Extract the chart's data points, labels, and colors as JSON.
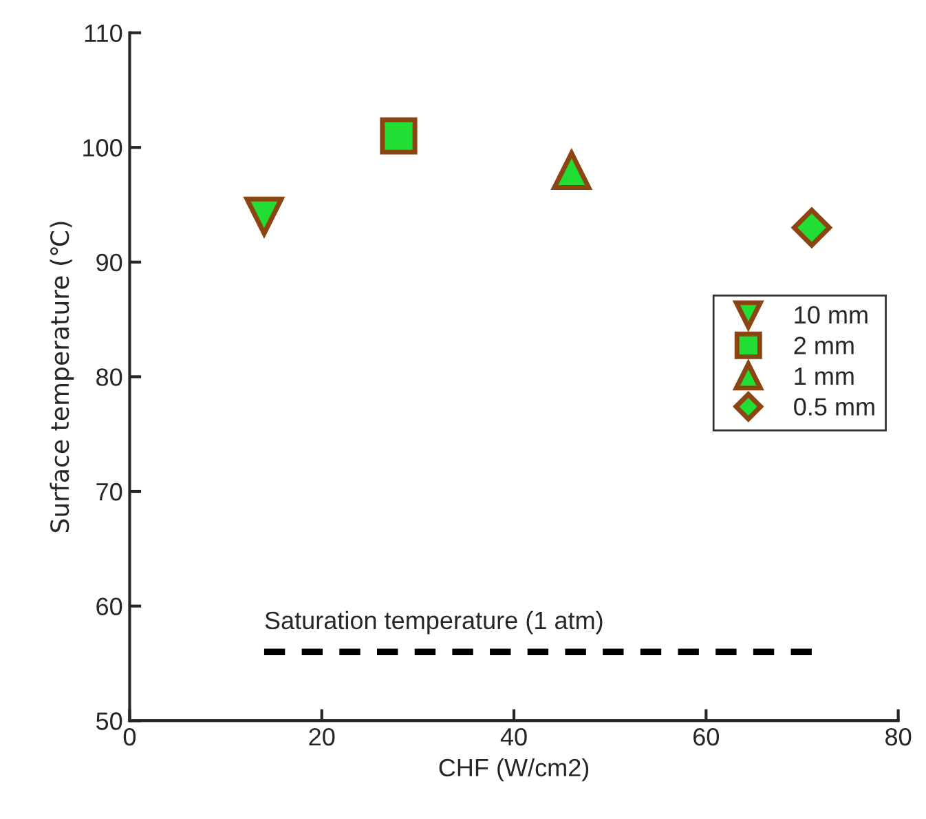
{
  "chart_data": {
    "type": "scatter",
    "xlabel": "CHF (W/cm2)",
    "ylabel": "Surface temperature (℃)",
    "xlim": [
      0,
      80
    ],
    "xticks": [
      0,
      20,
      40,
      60,
      80
    ],
    "ylim": [
      50,
      110
    ],
    "yticks": [
      50,
      60,
      70,
      80,
      90,
      100,
      110
    ],
    "grid": false,
    "legend": "right",
    "series": [
      {
        "name": "10 mm",
        "color": "#22dd33",
        "marker": "triangle_down",
        "x": [
          14
        ],
        "values": [
          94
        ]
      },
      {
        "name": "2 mm",
        "color": "#22dd33",
        "marker": "square",
        "x": [
          28
        ],
        "values": [
          101
        ]
      },
      {
        "name": "1 mm",
        "color": "#22dd33",
        "marker": "triangle",
        "x": [
          46
        ],
        "values": [
          98
        ]
      },
      {
        "name": "0.5 mm",
        "color": "#22dd33",
        "marker": "diamond",
        "x": [
          71
        ],
        "values": [
          93
        ]
      },
      {
        "type": "line",
        "color": "#000000",
        "line_style": "dashed",
        "marker": "none",
        "x": [
          14,
          71
        ],
        "values": [
          56,
          56
        ]
      }
    ],
    "annotations": [
      {
        "text": "Saturation temperature (1 atm)",
        "x": 14,
        "y": 56
      }
    ]
  }
}
